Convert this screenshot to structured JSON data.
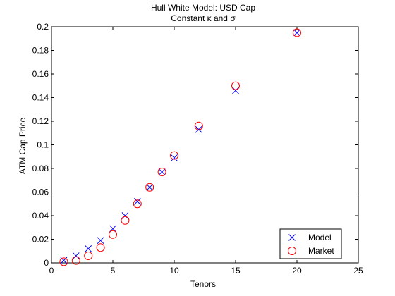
{
  "chart_data": {
    "type": "scatter",
    "title": "Hull White Model: USD Cap",
    "subtitle": "Constant κ and σ",
    "xlabel": "Tenors",
    "ylabel": "ATM Cap Price",
    "xlim": [
      0,
      25
    ],
    "ylim": [
      0,
      0.2
    ],
    "xticks": [
      0,
      5,
      10,
      15,
      20,
      25
    ],
    "yticks": [
      0,
      0.02,
      0.04,
      0.06,
      0.08,
      0.1,
      0.12,
      0.14,
      0.16,
      0.18,
      0.2
    ],
    "xtick_labels": [
      "0",
      "5",
      "10",
      "15",
      "20",
      "25"
    ],
    "ytick_labels": [
      "0",
      "0.02",
      "0.04",
      "0.06",
      "0.08",
      "0.1",
      "0.12",
      "0.14",
      "0.16",
      "0.18",
      "0.2"
    ],
    "grid": false,
    "legend_position": "bottom-right",
    "series": [
      {
        "name": "Model",
        "marker": "x",
        "color": "#0000ff",
        "x": [
          1,
          2,
          3,
          4,
          5,
          6,
          7,
          8,
          9,
          10,
          12,
          15,
          20
        ],
        "y": [
          0.002,
          0.006,
          0.012,
          0.019,
          0.029,
          0.04,
          0.052,
          0.064,
          0.077,
          0.089,
          0.113,
          0.146,
          0.195
        ]
      },
      {
        "name": "Market",
        "marker": "o",
        "color": "#ff0000",
        "x": [
          1,
          2,
          3,
          4,
          5,
          6,
          7,
          8,
          9,
          10,
          12,
          15,
          20
        ],
        "y": [
          0.001,
          0.002,
          0.006,
          0.013,
          0.024,
          0.036,
          0.05,
          0.064,
          0.077,
          0.091,
          0.116,
          0.15,
          0.195
        ]
      }
    ]
  }
}
